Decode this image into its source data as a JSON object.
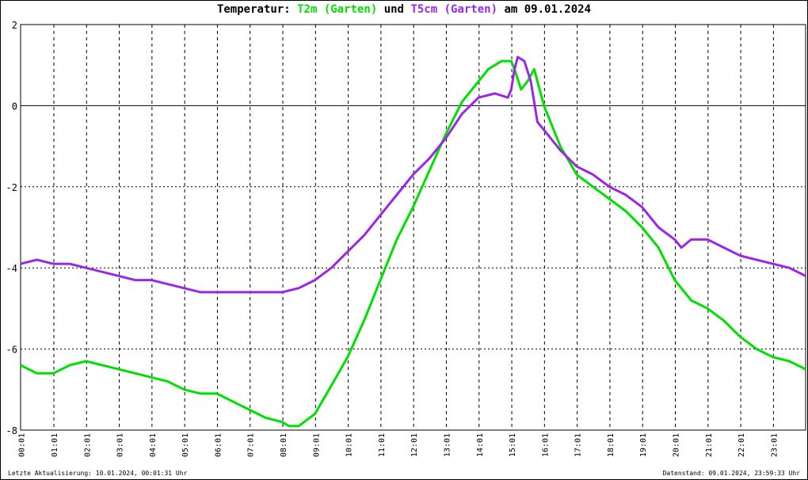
{
  "title": {
    "prefix": "Temperatur:",
    "series1": "T2m (Garten)",
    "joiner": "und",
    "series2": "T5cm (Garten)",
    "suffix": "am 09.01.2024"
  },
  "footer": {
    "left": "Letzte Aktualisierung: 10.01.2024, 00:01:31 Uhr",
    "right": "Datenstand: 09.01.2024, 23:59:33 Uhr"
  },
  "chart_data": {
    "type": "line",
    "title": "Temperatur: T2m (Garten) und T5cm (Garten) am 09.01.2024",
    "xlabel": "",
    "ylabel": "",
    "xlim": [
      0,
      24
    ],
    "ylim": [
      -8,
      2
    ],
    "yticks": [
      2,
      0,
      -2,
      -4,
      -6,
      -8
    ],
    "xticks": [
      "00:01",
      "01:01",
      "02:01",
      "03:01",
      "04:01",
      "05:01",
      "06:01",
      "07:01",
      "08:01",
      "09:01",
      "10:01",
      "11:01",
      "12:01",
      "13:01",
      "14:01",
      "15:01",
      "16:01",
      "17:01",
      "18:01",
      "19:01",
      "20:01",
      "21:01",
      "22:01",
      "23:01"
    ],
    "grid": true,
    "zero_line": true,
    "series": [
      {
        "name": "T2m (Garten)",
        "color": "#00e000",
        "x": [
          0,
          0.5,
          1,
          1.5,
          2,
          2.5,
          3,
          3.5,
          4,
          4.5,
          5,
          5.5,
          6,
          6.5,
          7,
          7.5,
          8,
          8.2,
          8.5,
          9,
          9.5,
          10,
          10.5,
          11,
          11.5,
          12,
          12.5,
          13,
          13.5,
          14,
          14.3,
          14.7,
          15,
          15.1,
          15.3,
          15.5,
          15.7,
          16,
          16.5,
          17,
          17.5,
          18,
          18.5,
          19,
          19.5,
          20,
          20.5,
          21,
          21.5,
          22,
          22.5,
          23,
          23.5,
          24
        ],
        "values": [
          -6.4,
          -6.6,
          -6.6,
          -6.4,
          -6.3,
          -6.4,
          -6.5,
          -6.6,
          -6.7,
          -6.8,
          -7.0,
          -7.1,
          -7.1,
          -7.3,
          -7.5,
          -7.7,
          -7.8,
          -7.9,
          -7.9,
          -7.6,
          -6.9,
          -6.2,
          -5.3,
          -4.3,
          -3.3,
          -2.5,
          -1.6,
          -0.7,
          0.1,
          0.6,
          0.9,
          1.1,
          1.1,
          0.9,
          0.4,
          0.6,
          0.9,
          0.0,
          -1.0,
          -1.7,
          -2.0,
          -2.3,
          -2.6,
          -3.0,
          -3.5,
          -4.3,
          -4.8,
          -5.0,
          -5.3,
          -5.7,
          -6.0,
          -6.2,
          -6.3,
          -6.5
        ]
      },
      {
        "name": "T5cm (Garten)",
        "color": "#9a27e6",
        "x": [
          0,
          0.5,
          1,
          1.5,
          2,
          2.5,
          3,
          3.5,
          4,
          4.5,
          5,
          5.5,
          6,
          6.5,
          7,
          7.5,
          8,
          8.5,
          9,
          9.5,
          10,
          10.5,
          11,
          11.5,
          12,
          12.5,
          13,
          13.5,
          14,
          14.5,
          14.9,
          15,
          15.1,
          15.2,
          15.4,
          15.6,
          15.8,
          16,
          16.5,
          17,
          17.5,
          18,
          18.5,
          19,
          19.5,
          20,
          20.2,
          20.5,
          21,
          21.5,
          22,
          22.5,
          23,
          23.5,
          24
        ],
        "values": [
          -3.9,
          -3.8,
          -3.9,
          -3.9,
          -4.0,
          -4.1,
          -4.2,
          -4.3,
          -4.3,
          -4.4,
          -4.5,
          -4.6,
          -4.6,
          -4.6,
          -4.6,
          -4.6,
          -4.6,
          -4.5,
          -4.3,
          -4.0,
          -3.6,
          -3.2,
          -2.7,
          -2.2,
          -1.7,
          -1.3,
          -0.8,
          -0.2,
          0.2,
          0.3,
          0.2,
          0.4,
          0.9,
          1.2,
          1.1,
          0.6,
          -0.4,
          -0.6,
          -1.1,
          -1.5,
          -1.7,
          -2.0,
          -2.2,
          -2.5,
          -3.0,
          -3.3,
          -3.5,
          -3.3,
          -3.3,
          -3.5,
          -3.7,
          -3.8,
          -3.9,
          -4.0,
          -4.2
        ]
      }
    ]
  }
}
